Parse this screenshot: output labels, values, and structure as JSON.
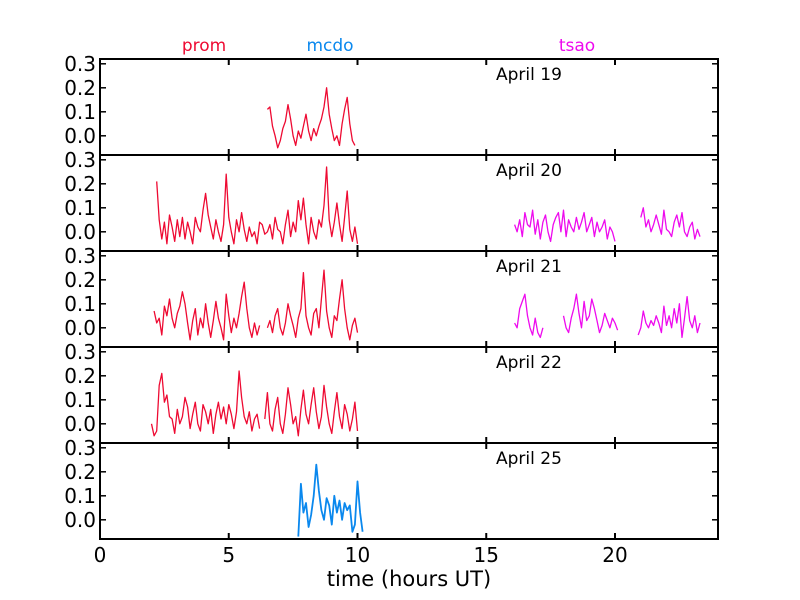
{
  "chart_data": {
    "type": "line",
    "xlabel": "time (hours UT)",
    "xlim": [
      0,
      24
    ],
    "x_ticks": [
      0,
      5,
      10,
      15,
      20
    ],
    "ylim": [
      -0.08,
      0.32
    ],
    "y_ticks": [
      0.0,
      0.1,
      0.2,
      0.3
    ],
    "y_tick_labels": [
      "0.0",
      "0.1",
      "0.2",
      "0.3"
    ],
    "site_labels": [
      {
        "name": "prom",
        "color": "#ee0a32"
      },
      {
        "name": "mcdo",
        "color": "#0a88ee"
      },
      {
        "name": "tsao",
        "color": "#ee0aee"
      }
    ],
    "panels": [
      {
        "label": "April 19",
        "series": [
          {
            "site": "prom",
            "x": [
              6.5,
              6.6,
              6.7,
              6.8,
              6.9,
              7.0,
              7.1,
              7.2,
              7.3,
              7.4,
              7.5,
              7.6,
              7.7,
              7.8,
              7.9,
              8.0,
              8.1,
              8.2,
              8.3,
              8.4,
              8.5,
              8.6,
              8.7,
              8.8,
              8.9,
              9.0,
              9.1,
              9.2,
              9.3,
              9.4,
              9.5,
              9.6,
              9.7,
              9.8,
              9.9
            ],
            "y": [
              0.11,
              0.12,
              0.04,
              0.0,
              -0.05,
              -0.02,
              0.03,
              0.06,
              0.13,
              0.07,
              0.0,
              -0.04,
              0.02,
              -0.01,
              0.04,
              0.09,
              0.02,
              -0.02,
              0.03,
              0.0,
              0.04,
              0.07,
              0.12,
              0.2,
              0.09,
              0.03,
              -0.02,
              0.0,
              -0.04,
              0.05,
              0.11,
              0.16,
              0.05,
              -0.02,
              -0.04
            ]
          }
        ]
      },
      {
        "label": "April 20",
        "series": [
          {
            "site": "prom",
            "x": [
              2.2,
              2.3,
              2.4,
              2.5,
              2.6,
              2.7,
              2.8,
              2.9,
              3.0,
              3.1,
              3.2,
              3.3,
              3.4,
              3.5,
              3.6,
              3.7,
              3.8,
              3.9,
              4.0,
              4.1,
              4.2,
              4.3,
              4.4,
              4.5,
              4.6,
              4.7,
              4.8,
              4.9,
              5.0,
              5.1,
              5.2,
              5.3,
              5.4,
              5.5,
              5.6,
              5.7,
              5.8,
              5.9,
              6.0,
              6.1,
              6.2,
              6.3,
              6.4,
              6.5,
              6.6,
              6.7,
              6.8,
              6.9,
              7.0,
              7.1,
              7.2,
              7.3,
              7.4,
              7.5,
              7.6,
              7.7,
              7.8,
              7.9,
              8.0,
              8.1,
              8.2,
              8.3,
              8.4,
              8.5,
              8.6,
              8.7,
              8.8,
              8.9,
              9.0,
              9.1,
              9.2,
              9.3,
              9.4,
              9.5,
              9.6,
              9.7,
              9.8,
              9.9,
              10.0
            ],
            "y": [
              0.21,
              0.05,
              -0.03,
              0.04,
              -0.05,
              0.07,
              0.02,
              -0.04,
              0.05,
              -0.02,
              0.06,
              -0.03,
              0.04,
              0.0,
              -0.05,
              0.06,
              0.02,
              0.0,
              0.09,
              0.16,
              0.07,
              0.02,
              -0.03,
              0.05,
              0.0,
              -0.04,
              0.03,
              0.24,
              0.06,
              0.0,
              -0.05,
              0.05,
              0.0,
              0.08,
              0.01,
              -0.04,
              0.02,
              -0.02,
              0.0,
              -0.05,
              0.04,
              0.03,
              -0.01,
              0.0,
              0.03,
              -0.03,
              0.06,
              0.01,
              0.0,
              -0.05,
              0.03,
              0.09,
              -0.02,
              0.04,
              0.0,
              0.13,
              0.05,
              0.14,
              0.03,
              -0.05,
              0.06,
              0.0,
              -0.03,
              0.05,
              0.02,
              0.11,
              0.27,
              0.05,
              -0.02,
              0.04,
              0.12,
              0.03,
              -0.04,
              0.06,
              0.17,
              0.01,
              -0.04,
              0.02,
              -0.05
            ]
          },
          {
            "site": "tsao",
            "x": [
              16.1,
              16.2,
              16.3,
              16.4,
              16.5,
              16.6,
              16.7,
              16.8,
              16.9,
              17.0,
              17.1,
              17.2,
              17.3,
              17.4,
              17.5,
              17.6,
              17.7,
              17.8,
              17.9,
              18.0,
              18.1,
              18.2,
              18.3,
              18.4,
              18.5,
              18.6,
              18.7,
              18.8,
              18.9,
              19.0,
              19.1,
              19.2,
              19.3,
              19.4,
              19.5,
              19.6,
              19.7,
              19.8,
              19.9,
              20.0
            ],
            "y": [
              0.03,
              0.0,
              0.05,
              -0.02,
              0.08,
              0.03,
              0.02,
              0.09,
              -0.01,
              0.05,
              -0.03,
              0.04,
              0.07,
              0.0,
              -0.04,
              0.03,
              0.06,
              0.08,
              0.0,
              0.09,
              -0.02,
              0.05,
              0.02,
              0.0,
              0.06,
              0.01,
              0.04,
              0.08,
              0.0,
              0.03,
              0.06,
              -0.02,
              0.04,
              0.0,
              0.02,
              0.05,
              -0.03,
              0.02,
              0.0,
              -0.04
            ],
            "note_gap_before": false
          },
          {
            "site": "tsao",
            "x": [
              21.0,
              21.1,
              21.2,
              21.3,
              21.4,
              21.5,
              21.6,
              21.7,
              21.8,
              21.9,
              22.0,
              22.1,
              22.2,
              22.3,
              22.4,
              22.5,
              22.6,
              22.7,
              22.8,
              22.9,
              23.0,
              23.1,
              23.2,
              23.3
            ],
            "y": [
              0.06,
              0.1,
              0.02,
              0.05,
              0.0,
              0.03,
              0.07,
              0.03,
              -0.01,
              0.09,
              0.01,
              0.0,
              -0.02,
              0.04,
              0.07,
              0.02,
              0.08,
              0.0,
              -0.02,
              0.02,
              0.04,
              -0.03,
              0.01,
              -0.02
            ]
          }
        ]
      },
      {
        "label": "April 21",
        "series": [
          {
            "site": "prom",
            "x": [
              2.1,
              2.2,
              2.3,
              2.4,
              2.5,
              2.6,
              2.7,
              2.8,
              2.9,
              3.0,
              3.1,
              3.2,
              3.3,
              3.4,
              3.5,
              3.6,
              3.7,
              3.8,
              3.9,
              4.0,
              4.1,
              4.2,
              4.3,
              4.4,
              4.5,
              4.6,
              4.7,
              4.8,
              4.9,
              5.0,
              5.1,
              5.2,
              5.3,
              5.4,
              5.5,
              5.6,
              5.7,
              5.8,
              5.9,
              6.0,
              6.1,
              6.2
            ],
            "y": [
              0.07,
              0.02,
              0.04,
              -0.03,
              0.09,
              0.05,
              0.12,
              0.04,
              0.0,
              0.06,
              0.09,
              0.15,
              0.1,
              0.02,
              -0.05,
              0.03,
              0.08,
              -0.03,
              0.04,
              0.0,
              0.1,
              0.02,
              -0.04,
              0.03,
              0.11,
              0.04,
              0.0,
              -0.05,
              0.14,
              0.05,
              -0.02,
              0.04,
              0.0,
              0.06,
              0.13,
              0.19,
              0.08,
              0.0,
              -0.04,
              0.02,
              -0.03,
              0.01
            ]
          },
          {
            "site": "prom",
            "x": [
              6.5,
              6.6,
              6.7,
              6.8,
              6.9,
              7.0,
              7.1,
              7.2,
              7.3,
              7.4,
              7.5,
              7.6,
              7.7,
              7.8,
              7.9,
              8.0,
              8.1,
              8.2,
              8.3,
              8.4,
              8.5,
              8.6,
              8.7,
              8.8,
              8.9,
              9.0,
              9.1,
              9.2,
              9.3,
              9.4,
              9.5,
              9.6,
              9.7,
              9.8,
              9.9,
              10.0
            ],
            "y": [
              0.0,
              0.03,
              -0.02,
              0.05,
              0.08,
              0.0,
              -0.03,
              0.02,
              0.1,
              0.05,
              0.01,
              -0.04,
              0.04,
              0.08,
              0.23,
              0.05,
              0.0,
              -0.03,
              0.06,
              0.08,
              0.0,
              0.12,
              0.24,
              0.07,
              0.0,
              -0.04,
              0.05,
              0.03,
              0.12,
              0.2,
              0.08,
              0.0,
              -0.05,
              0.01,
              0.04,
              -0.02
            ]
          },
          {
            "site": "tsao",
            "x": [
              16.1,
              16.2,
              16.3,
              16.4,
              16.5,
              16.6,
              16.7,
              16.8,
              16.9,
              17.0,
              17.1,
              17.2
            ],
            "y": [
              0.02,
              0.0,
              0.08,
              0.11,
              0.14,
              0.05,
              0.0,
              -0.03,
              0.04,
              -0.02,
              -0.04,
              0.0
            ]
          },
          {
            "site": "tsao",
            "x": [
              18.0,
              18.1,
              18.2,
              18.3,
              18.4,
              18.5,
              18.6,
              18.7,
              18.8,
              18.9,
              19.0,
              19.1,
              19.2,
              19.3,
              19.4,
              19.5,
              19.6,
              19.7,
              19.8,
              19.9,
              20.0,
              20.1
            ],
            "y": [
              0.05,
              0.0,
              -0.02,
              0.04,
              0.08,
              0.14,
              0.06,
              0.0,
              0.11,
              0.03,
              0.05,
              0.12,
              0.08,
              0.03,
              -0.02,
              0.01,
              0.06,
              0.03,
              0.0,
              0.04,
              0.02,
              -0.01
            ]
          },
          {
            "site": "tsao",
            "x": [
              20.9,
              21.0,
              21.1,
              21.2,
              21.3,
              21.4,
              21.5,
              21.6,
              21.7,
              21.8,
              21.9,
              22.0,
              22.1,
              22.2,
              22.3,
              22.4,
              22.5,
              22.6,
              22.7,
              22.8,
              22.9,
              23.0,
              23.1,
              23.2,
              23.3
            ],
            "y": [
              -0.03,
              0.0,
              0.07,
              0.02,
              0.0,
              0.03,
              0.01,
              0.05,
              0.02,
              -0.02,
              0.09,
              0.01,
              0.05,
              0.0,
              0.08,
              0.02,
              0.1,
              -0.04,
              0.04,
              0.13,
              0.03,
              0.0,
              0.05,
              -0.02,
              0.02
            ]
          }
        ]
      },
      {
        "label": "April 22",
        "series": [
          {
            "site": "prom",
            "x": [
              2.0,
              2.1,
              2.2,
              2.3,
              2.4,
              2.5,
              2.6,
              2.7,
              2.8,
              2.9,
              3.0,
              3.1,
              3.2,
              3.3,
              3.4,
              3.5,
              3.6,
              3.7,
              3.8,
              3.9,
              4.0,
              4.1,
              4.2,
              4.3,
              4.4,
              4.5,
              4.6,
              4.7,
              4.8,
              4.9,
              5.0,
              5.1,
              5.2,
              5.3,
              5.4,
              5.5,
              5.6,
              5.7,
              5.8,
              5.9,
              6.0,
              6.1,
              6.2
            ],
            "y": [
              0.0,
              -0.05,
              -0.03,
              0.16,
              0.21,
              0.09,
              0.12,
              0.03,
              0.02,
              -0.04,
              0.06,
              0.0,
              0.03,
              0.11,
              0.07,
              -0.02,
              0.04,
              0.09,
              0.0,
              -0.03,
              0.08,
              0.05,
              0.0,
              0.06,
              -0.04,
              0.04,
              0.09,
              0.02,
              0.07,
              0.0,
              0.08,
              0.04,
              -0.02,
              0.05,
              0.22,
              0.11,
              0.03,
              0.0,
              0.05,
              -0.03,
              0.02,
              0.04,
              -0.02
            ]
          },
          {
            "site": "prom",
            "x": [
              6.4,
              6.5,
              6.6,
              6.7,
              6.8,
              6.9,
              7.0,
              7.1,
              7.2,
              7.3,
              7.4,
              7.5,
              7.6,
              7.7,
              7.8,
              7.9,
              8.0,
              8.1,
              8.2,
              8.3,
              8.4,
              8.5,
              8.6,
              8.7,
              8.8,
              8.9,
              9.0,
              9.1,
              9.2,
              9.3,
              9.4,
              9.5,
              9.6,
              9.7,
              9.8,
              9.9,
              10.0
            ],
            "y": [
              0.02,
              0.13,
              0.0,
              -0.03,
              0.06,
              0.11,
              0.0,
              -0.04,
              0.04,
              0.15,
              0.08,
              0.0,
              0.03,
              -0.05,
              0.06,
              0.14,
              0.04,
              0.0,
              0.08,
              0.15,
              0.05,
              -0.02,
              0.03,
              0.16,
              0.07,
              0.0,
              -0.04,
              0.05,
              0.13,
              0.03,
              -0.02,
              0.08,
              0.04,
              -0.03,
              0.02,
              0.09,
              -0.03
            ]
          }
        ]
      },
      {
        "label": "April 25",
        "series": [
          {
            "site": "mcdo",
            "x": [
              7.7,
              7.8,
              7.9,
              8.0,
              8.1,
              8.2,
              8.3,
              8.4,
              8.5,
              8.6,
              8.7,
              8.8,
              8.9,
              9.0,
              9.1,
              9.2,
              9.3,
              9.4,
              9.5,
              9.6,
              9.7,
              9.8,
              9.9,
              10.0,
              10.1,
              10.2
            ],
            "y": [
              -0.07,
              0.15,
              0.03,
              0.07,
              -0.03,
              0.02,
              0.1,
              0.23,
              0.12,
              0.04,
              0.0,
              0.09,
              0.06,
              -0.02,
              0.1,
              0.03,
              0.08,
              0.0,
              0.07,
              0.04,
              0.06,
              -0.05,
              -0.02,
              0.16,
              0.03,
              -0.05
            ]
          }
        ]
      }
    ]
  }
}
